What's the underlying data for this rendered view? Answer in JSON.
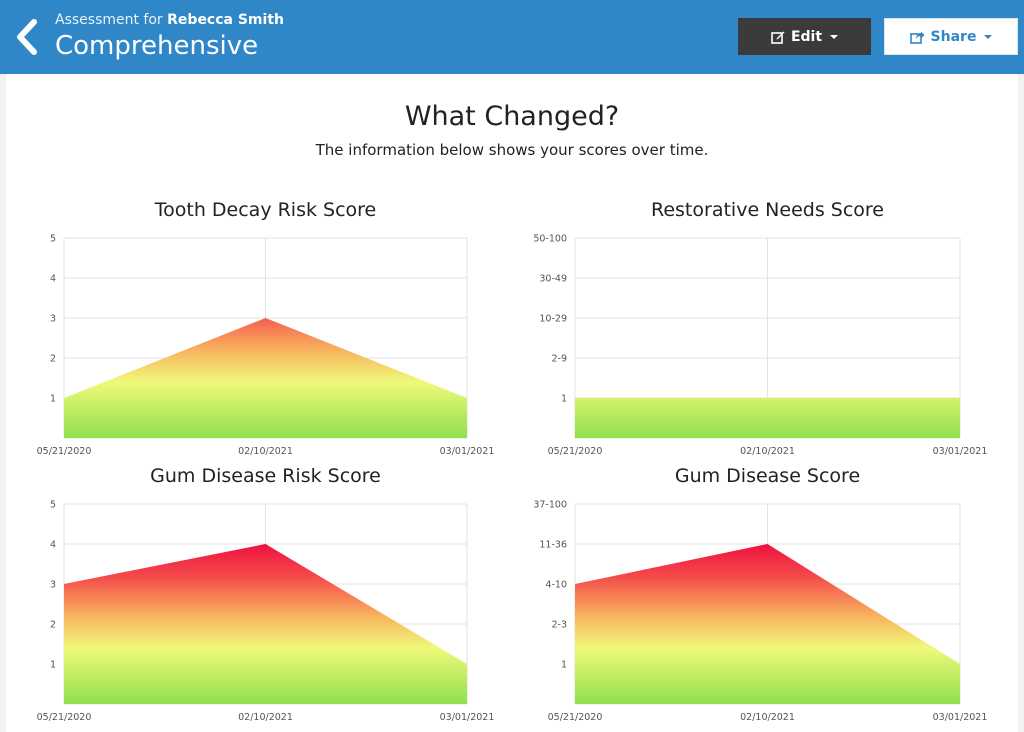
{
  "header": {
    "subtitle_prefix": "Assessment for",
    "patient_name": "Rebecca Smith",
    "title": "Comprehensive",
    "edit_label": "Edit",
    "share_label": "Share",
    "bar_color": "#2f87c8"
  },
  "main": {
    "heading": "What Changed?",
    "subheading": "The information below shows your scores over time."
  },
  "chart_data": [
    {
      "type": "area",
      "title": "Tooth Decay Risk Score",
      "x": [
        "05/21/2020",
        "02/10/2021",
        "03/01/2021"
      ],
      "y_ticks": [
        "1",
        "2",
        "3",
        "4",
        "5"
      ],
      "ylim": [
        0,
        5
      ],
      "values": [
        1,
        3,
        1
      ],
      "grid": true,
      "fill": "gradient green-yellow-red"
    },
    {
      "type": "area",
      "title": "Restorative Needs Score",
      "x": [
        "05/21/2020",
        "02/10/2021",
        "03/01/2021"
      ],
      "y_ticks": [
        "1",
        "2-9",
        "10-29",
        "30-49",
        "50-100"
      ],
      "ylim": [
        0,
        5
      ],
      "values": [
        1,
        1,
        1
      ],
      "grid": true,
      "fill": "gradient green-yellow-red"
    },
    {
      "type": "area",
      "title": "Gum Disease Risk Score",
      "x": [
        "05/21/2020",
        "02/10/2021",
        "03/01/2021"
      ],
      "y_ticks": [
        "1",
        "2",
        "3",
        "4",
        "5"
      ],
      "ylim": [
        0,
        5
      ],
      "values": [
        3,
        4,
        1
      ],
      "grid": true,
      "fill": "gradient green-yellow-red"
    },
    {
      "type": "area",
      "title": "Gum Disease Score",
      "x": [
        "05/21/2020",
        "02/10/2021",
        "03/01/2021"
      ],
      "y_ticks": [
        "1",
        "2-3",
        "4-10",
        "11-36",
        "37-100"
      ],
      "ylim": [
        0,
        5
      ],
      "values": [
        3,
        4,
        1
      ],
      "grid": true,
      "fill": "gradient green-yellow-red"
    }
  ]
}
